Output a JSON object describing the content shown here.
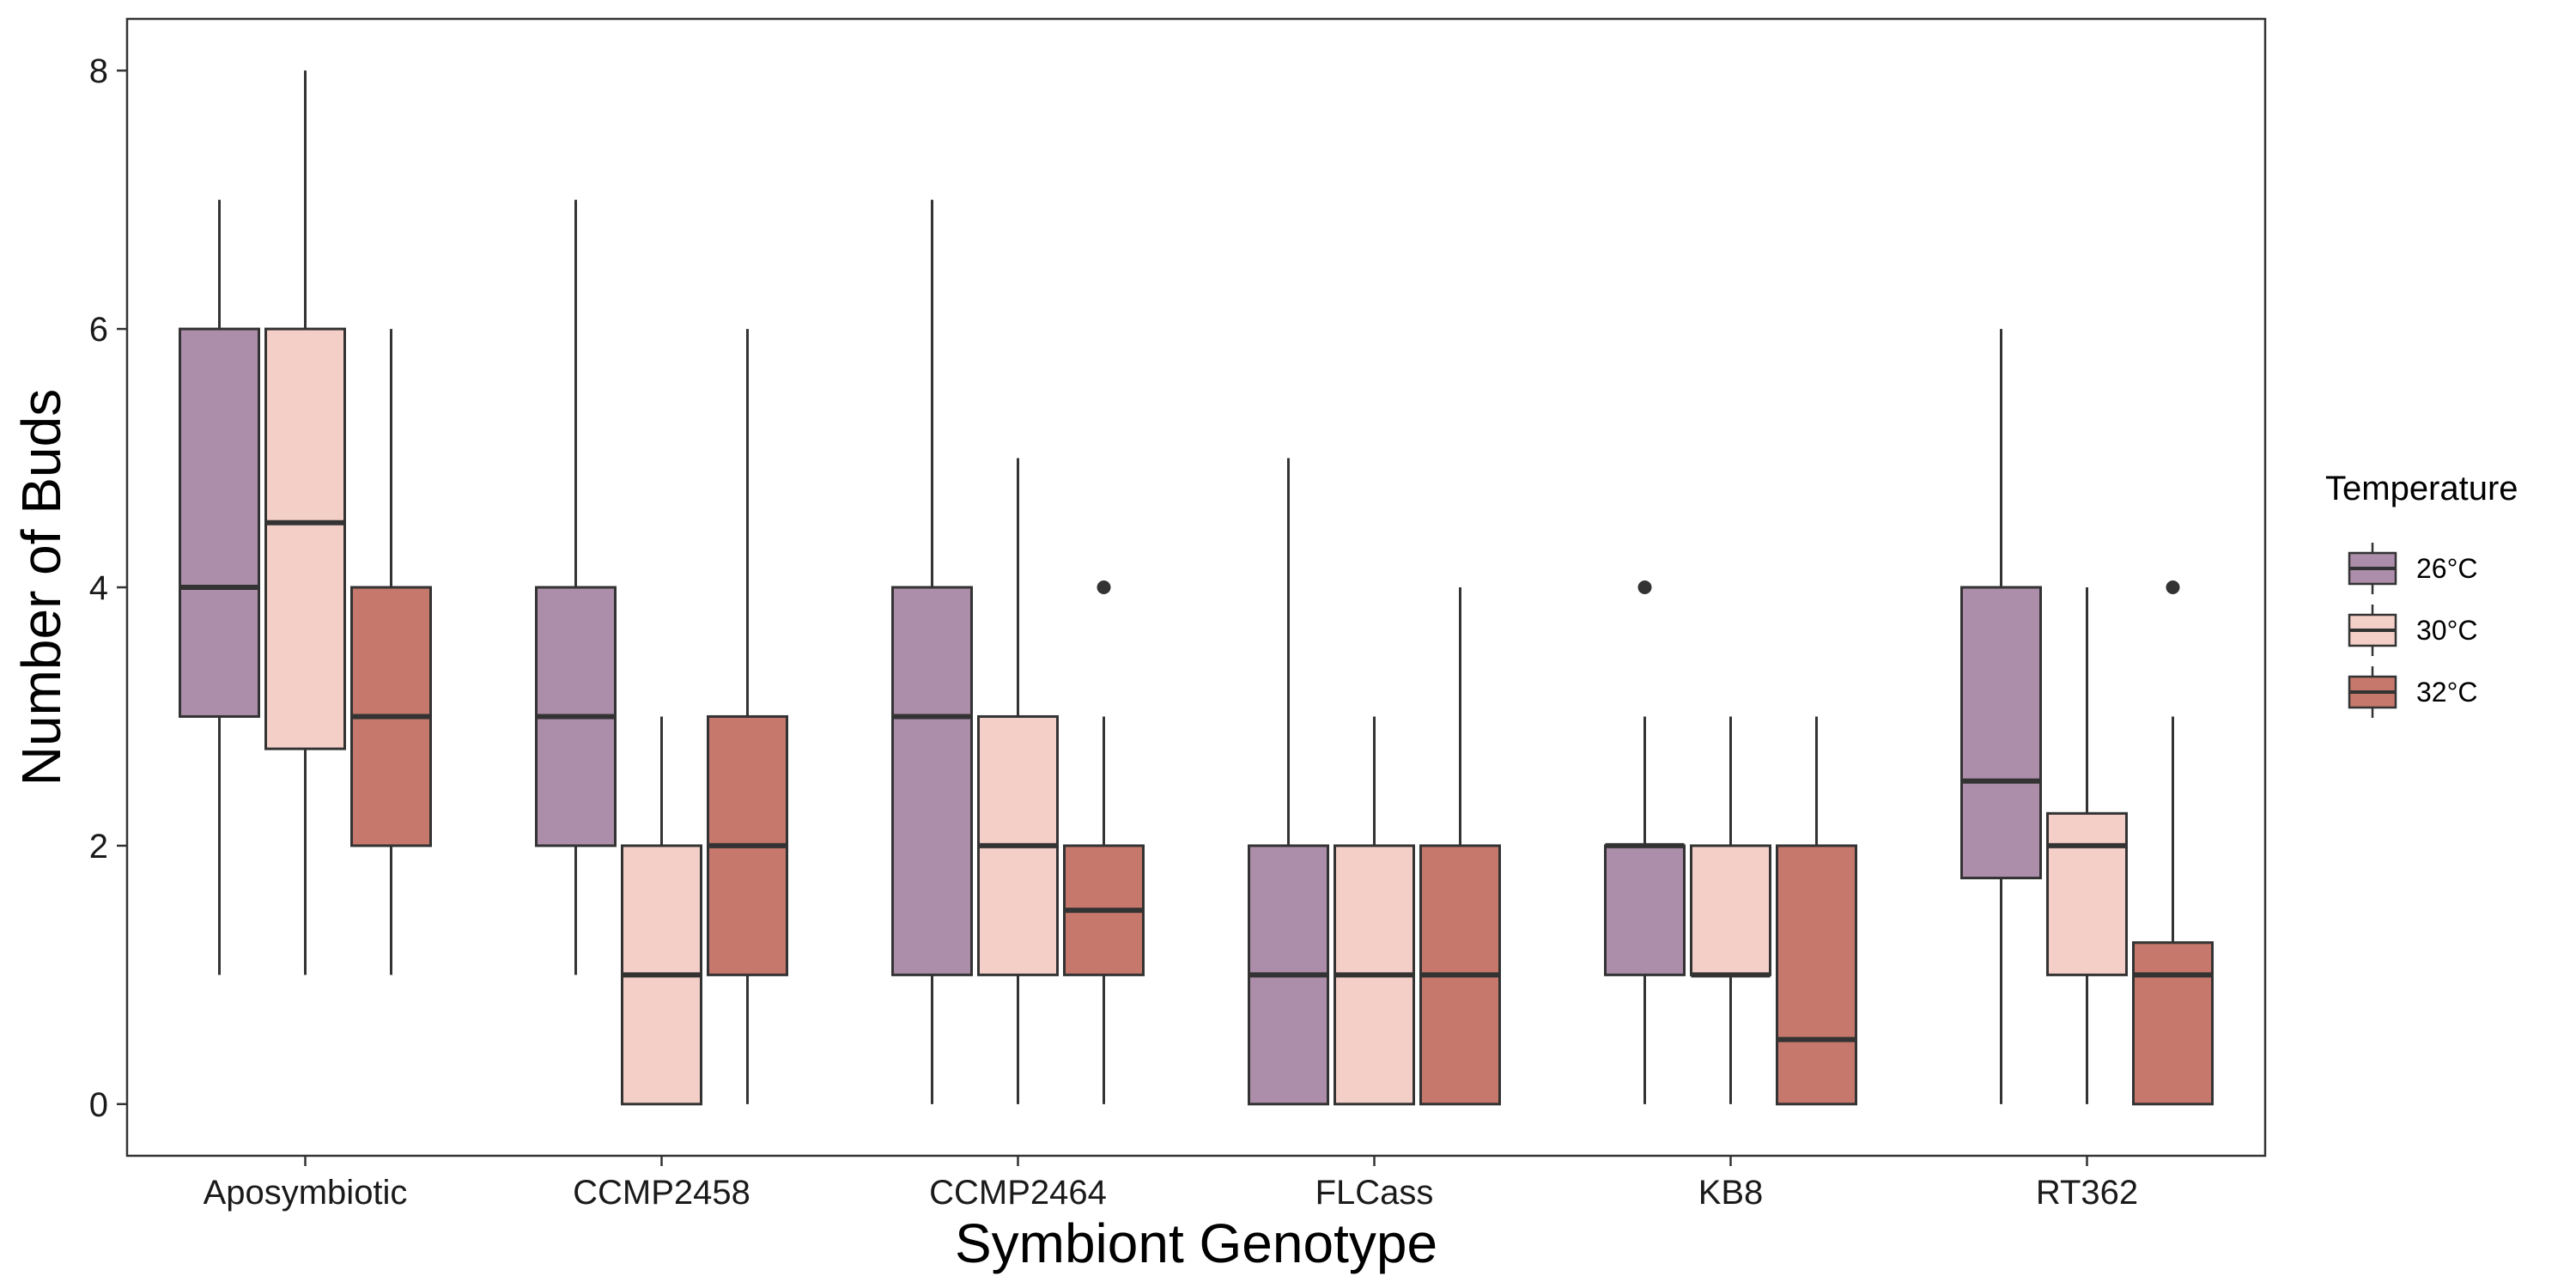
{
  "chart_data": {
    "type": "boxplot",
    "title": "",
    "xlabel": "Symbiont Genotype",
    "ylabel": "Number of Buds",
    "ylim": [
      -0.4,
      8.4
    ],
    "yticks": [
      "0",
      "2",
      "4",
      "6",
      "8"
    ],
    "ytick_values": [
      0,
      2,
      4,
      6,
      8
    ],
    "grid": false,
    "legend": {
      "title": "Temperature",
      "placement": "right",
      "entries": [
        "26°C",
        "30°C",
        "32°C"
      ]
    },
    "categories": [
      "Aposymbiotic",
      "CCMP2458",
      "CCMP2464",
      "FLCass",
      "KB8",
      "RT362"
    ],
    "series": [
      {
        "name": "26°C",
        "color": "#ac8daa",
        "boxes": [
          {
            "whisker_low": 1,
            "q1": 3,
            "median": 4,
            "q3": 6,
            "whisker_high": 7,
            "outliers": []
          },
          {
            "whisker_low": 1,
            "q1": 2,
            "median": 3,
            "q3": 4,
            "whisker_high": 7,
            "outliers": []
          },
          {
            "whisker_low": 0,
            "q1": 1,
            "median": 3,
            "q3": 4,
            "whisker_high": 7,
            "outliers": []
          },
          {
            "whisker_low": 0,
            "q1": 0,
            "median": 1,
            "q3": 2,
            "whisker_high": 5,
            "outliers": []
          },
          {
            "whisker_low": 0,
            "q1": 1,
            "median": 2,
            "q3": 2,
            "whisker_high": 3,
            "outliers": [
              4
            ]
          },
          {
            "whisker_low": 0,
            "q1": 1.75,
            "median": 2.5,
            "q3": 4,
            "whisker_high": 6,
            "outliers": []
          }
        ]
      },
      {
        "name": "30°C",
        "color": "#f4cfc8",
        "boxes": [
          {
            "whisker_low": 1,
            "q1": 2.75,
            "median": 4.5,
            "q3": 6,
            "whisker_high": 8,
            "outliers": []
          },
          {
            "whisker_low": 0,
            "q1": 0,
            "median": 1,
            "q3": 2,
            "whisker_high": 3,
            "outliers": []
          },
          {
            "whisker_low": 0,
            "q1": 1,
            "median": 2,
            "q3": 3,
            "whisker_high": 5,
            "outliers": []
          },
          {
            "whisker_low": 0,
            "q1": 0,
            "median": 1,
            "q3": 2,
            "whisker_high": 3,
            "outliers": []
          },
          {
            "whisker_low": 0,
            "q1": 1,
            "median": 1,
            "q3": 2,
            "whisker_high": 3,
            "outliers": []
          },
          {
            "whisker_low": 0,
            "q1": 1,
            "median": 2,
            "q3": 2.25,
            "whisker_high": 4,
            "outliers": []
          }
        ]
      },
      {
        "name": "32°C",
        "color": "#c5786b",
        "boxes": [
          {
            "whisker_low": 1,
            "q1": 2,
            "median": 3,
            "q3": 4,
            "whisker_high": 6,
            "outliers": []
          },
          {
            "whisker_low": 0,
            "q1": 1,
            "median": 2,
            "q3": 3,
            "whisker_high": 6,
            "outliers": []
          },
          {
            "whisker_low": 0,
            "q1": 1,
            "median": 1.5,
            "q3": 2,
            "whisker_high": 3,
            "outliers": [
              4
            ]
          },
          {
            "whisker_low": 0,
            "q1": 0,
            "median": 1,
            "q3": 2,
            "whisker_high": 4,
            "outliers": []
          },
          {
            "whisker_low": 0,
            "q1": 0,
            "median": 0.5,
            "q3": 2,
            "whisker_high": 3,
            "outliers": []
          },
          {
            "whisker_low": 0,
            "q1": 0,
            "median": 1,
            "q3": 1.25,
            "whisker_high": 3,
            "outliers": [
              4
            ]
          }
        ]
      }
    ]
  }
}
